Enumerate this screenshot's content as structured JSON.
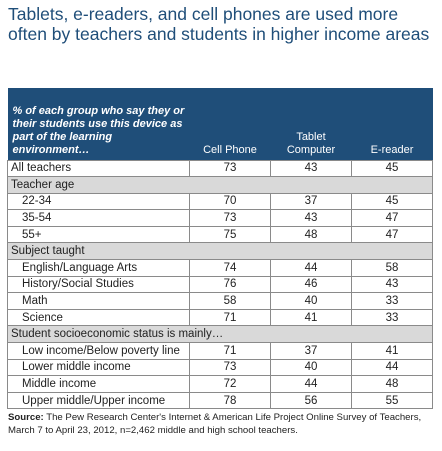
{
  "title": "Tablets, e-readers, and cell phones are used more often by teachers and students in higher income areas",
  "header": {
    "question": "% of each group who say they or their students use this device as part of the learning environment…",
    "columns": [
      "Cell Phone",
      "Tablet Computer",
      "E-reader"
    ]
  },
  "rows": [
    {
      "label": "All teachers",
      "values": [
        73,
        43,
        45
      ]
    },
    {
      "label": "Teacher age",
      "section": true
    },
    {
      "label": "22-34",
      "values": [
        70,
        37,
        45
      ]
    },
    {
      "label": "35-54",
      "values": [
        73,
        43,
        47
      ]
    },
    {
      "label": "55+",
      "values": [
        75,
        48,
        47
      ]
    },
    {
      "label": "Subject taught",
      "section": true
    },
    {
      "label": "English/Language Arts",
      "values": [
        74,
        44,
        58
      ]
    },
    {
      "label": "History/Social Studies",
      "values": [
        76,
        46,
        43
      ]
    },
    {
      "label": "Math",
      "values": [
        58,
        40,
        33
      ]
    },
    {
      "label": "Science",
      "values": [
        71,
        41,
        33
      ]
    },
    {
      "label": "Student socioeconomic status is mainly…",
      "section": true
    },
    {
      "label": "Low income/Below poverty line",
      "values": [
        71,
        37,
        41
      ]
    },
    {
      "label": "Lower middle income",
      "values": [
        73,
        40,
        44
      ]
    },
    {
      "label": "Middle income",
      "values": [
        72,
        44,
        48
      ]
    },
    {
      "label": "Upper middle/Upper income",
      "values": [
        78,
        56,
        55
      ]
    }
  ],
  "source": {
    "label": "Source:",
    "text": "The Pew Research Center's Internet & American Life Project Online Survey of Teachers, March 7 to April 23, 2012, n=2,462 middle and high school teachers."
  },
  "colors": {
    "header_bg": "#1f4e79",
    "section_bg": "#d9d9d9",
    "title": "#1f4e79"
  },
  "chart_data": {
    "type": "table",
    "title": "Tablets, e-readers, and cell phones are used more often by teachers and students in higher income areas",
    "columns": [
      "Cell Phone",
      "Tablet Computer",
      "E-reader"
    ],
    "categories": [
      "All teachers",
      "22-34",
      "35-54",
      "55+",
      "English/Language Arts",
      "History/Social Studies",
      "Math",
      "Science",
      "Low income/Below poverty line",
      "Lower middle income",
      "Middle income",
      "Upper middle/Upper income"
    ],
    "series": [
      {
        "name": "Cell Phone",
        "values": [
          73,
          70,
          73,
          75,
          74,
          76,
          58,
          71,
          71,
          73,
          72,
          78
        ]
      },
      {
        "name": "Tablet Computer",
        "values": [
          43,
          37,
          43,
          48,
          44,
          46,
          40,
          41,
          37,
          40,
          44,
          56
        ]
      },
      {
        "name": "E-reader",
        "values": [
          45,
          45,
          47,
          47,
          58,
          43,
          33,
          33,
          41,
          44,
          48,
          55
        ]
      }
    ]
  }
}
